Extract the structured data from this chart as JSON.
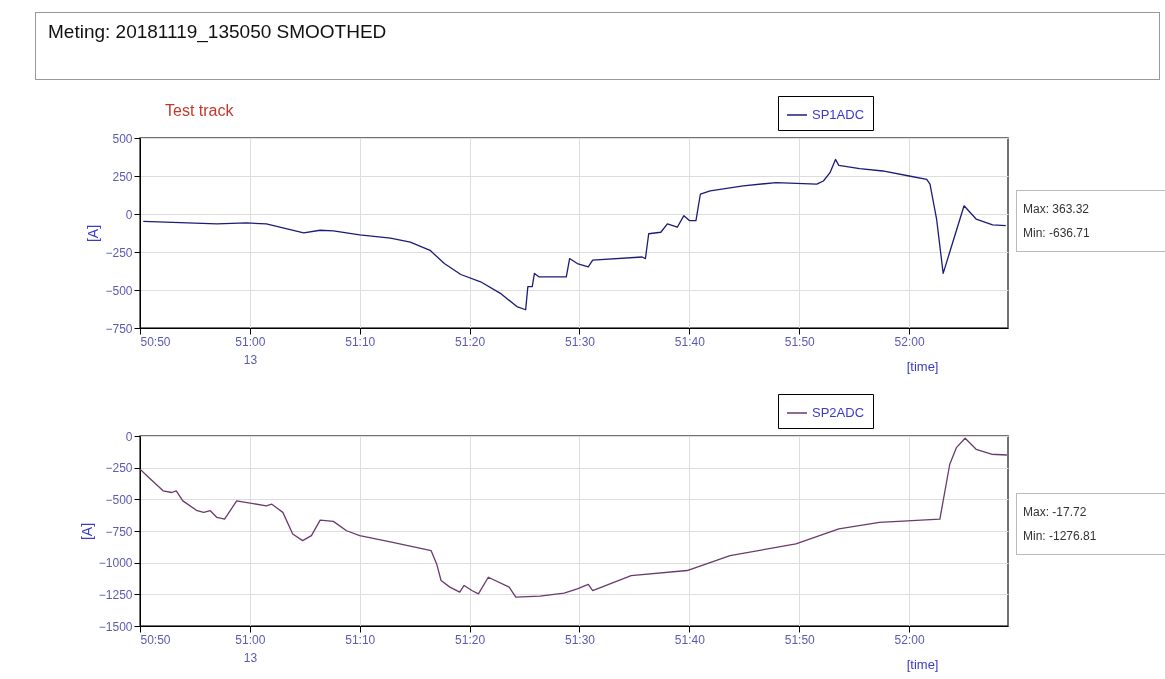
{
  "chart_data": [
    {
      "type": "line",
      "title": "Meting:  20181119_135050 SMOOTHED",
      "subtitle": "Test track",
      "xlabel": "[time]",
      "ylabel": "[A]",
      "annotations": [
        "Max: 363.32",
        "Min: -636.71"
      ],
      "grid": true,
      "legend": "top right",
      "xlim": [
        3050,
        3129
      ],
      "ylim": [
        -750,
        500
      ],
      "yticks": [
        -750,
        -500,
        -250,
        0,
        250,
        500
      ],
      "xticks": [
        {
          "value": 3050,
          "label": "50:50"
        },
        {
          "value": 3060,
          "label": "51:00\n13"
        },
        {
          "value": 3070,
          "label": "51:10"
        },
        {
          "value": 3080,
          "label": "51:20"
        },
        {
          "value": 3090,
          "label": "51:30"
        },
        {
          "value": 3100,
          "label": "51:40"
        },
        {
          "value": 3110,
          "label": "51:50"
        },
        {
          "value": 3120,
          "label": "52:00"
        }
      ],
      "series": [
        {
          "name": "SP1ADC",
          "color": "#1c1c78",
          "x": [
            3050.3,
            3057,
            3059.7,
            3061.5,
            3064.9,
            3066.4,
            3067.6,
            3070,
            3072.8,
            3074.6,
            3076.4,
            3077.7,
            3079.2,
            3081,
            3082.8,
            3084.3,
            3085.1,
            3085.3,
            3085.7,
            3085.9,
            3086.3,
            3088.6,
            3088.8,
            3089.1,
            3089.8,
            3090.8,
            3091.2,
            3095.7,
            3096,
            3096.3,
            3097.4,
            3098,
            3098.9,
            3099.5,
            3100,
            3100.6,
            3101,
            3101.9,
            3104.9,
            3107.9,
            3111.6,
            3112.2,
            3112.8,
            3113.3,
            3113.6,
            3115.5,
            3117.6,
            3120,
            3121.6,
            3121.9,
            3122.5,
            3123.1,
            3123.7,
            3125,
            3126.1,
            3127.6,
            3128.8
          ],
          "values": [
            -48,
            -65,
            -59,
            -65,
            -124,
            -107,
            -111,
            -137,
            -159,
            -185,
            -239,
            -326,
            -398,
            -446,
            -522,
            -609,
            -630,
            -478,
            -478,
            -391,
            -413,
            -413,
            -413,
            -293,
            -326,
            -348,
            -304,
            -283,
            -293,
            -130,
            -120,
            -65,
            -87,
            -11,
            -43,
            -43,
            130,
            152,
            185,
            207,
            196,
            217,
            272,
            359,
            320,
            298,
            283,
            250,
            228,
            196,
            -33,
            -391,
            -250,
            54,
            -33,
            -72,
            -76
          ]
        }
      ]
    },
    {
      "type": "line",
      "xlabel": "[time]",
      "ylabel": "[A]",
      "annotations": [
        "Max: -17.72",
        "Min: -1276.81"
      ],
      "grid": true,
      "legend": "top right",
      "xlim": [
        3050,
        3129
      ],
      "ylim": [
        -1500,
        0
      ],
      "yticks": [
        -1500,
        -1250,
        -1000,
        -750,
        -500,
        -250,
        0
      ],
      "xticks": [
        {
          "value": 3050,
          "label": "50:50"
        },
        {
          "value": 3060,
          "label": "51:00\n13"
        },
        {
          "value": 3070,
          "label": "51:10"
        },
        {
          "value": 3080,
          "label": "51:20"
        },
        {
          "value": 3090,
          "label": "51:30"
        },
        {
          "value": 3100,
          "label": "51:40"
        },
        {
          "value": 3110,
          "label": "51:50"
        },
        {
          "value": 3120,
          "label": "52:00"
        }
      ],
      "series": [
        {
          "name": "SP2ADC",
          "color": "#6a3a6e",
          "x": [
            3050,
            3050.8,
            3052.1,
            3052.9,
            3053.3,
            3053.9,
            3055.2,
            3055.8,
            3056.4,
            3057,
            3057.7,
            3058.8,
            3061.5,
            3062,
            3063,
            3063.9,
            3064.8,
            3065.6,
            3066.4,
            3067.6,
            3068.8,
            3070,
            3073,
            3076.5,
            3077,
            3077.4,
            3078.2,
            3079.1,
            3079.5,
            3080.2,
            3080.8,
            3081.7,
            3083.6,
            3084.2,
            3086.4,
            3088.6,
            3089.8,
            3090.8,
            3091.2,
            3094.7,
            3099.8,
            3103.7,
            3109.7,
            3113.6,
            3117.3,
            3122.8,
            3123.7,
            3124.3,
            3125.1,
            3126.1,
            3127.5,
            3128.9
          ],
          "values": [
            -262,
            -328,
            -433,
            -446,
            -433,
            -512,
            -590,
            -603,
            -590,
            -643,
            -656,
            -512,
            -551,
            -538,
            -603,
            -774,
            -826,
            -787,
            -664,
            -674,
            -748,
            -787,
            -839,
            -905,
            -1010,
            -1141,
            -1193,
            -1233,
            -1180,
            -1220,
            -1246,
            -1115,
            -1193,
            -1272,
            -1264,
            -1241,
            -1207,
            -1172,
            -1220,
            -1102,
            -1062,
            -944,
            -852,
            -734,
            -682,
            -656,
            -223,
            -92,
            -18,
            -105,
            -144,
            -150
          ]
        }
      ]
    }
  ]
}
